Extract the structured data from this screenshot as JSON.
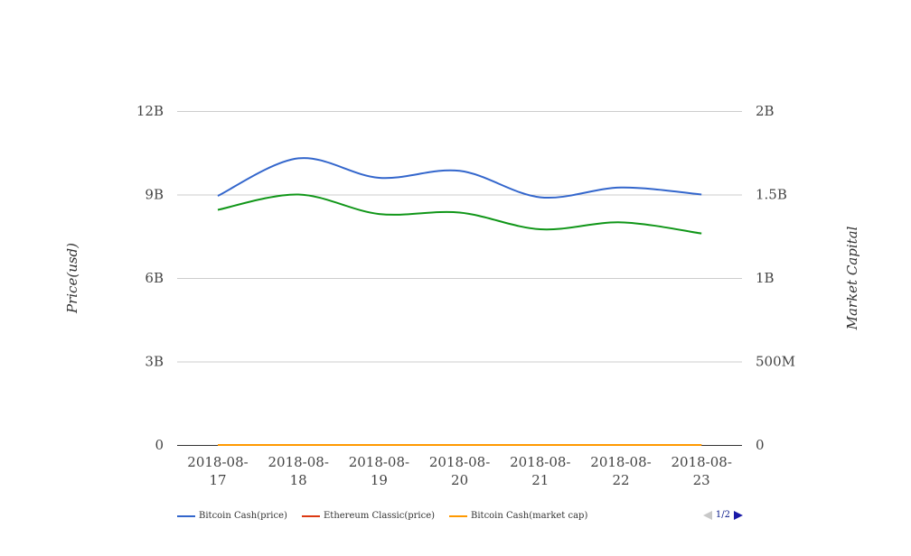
{
  "chart_data": {
    "type": "line",
    "categories": [
      "2018-08-17",
      "2018-08-18",
      "2018-08-19",
      "2018-08-20",
      "2018-08-21",
      "2018-08-22",
      "2018-08-23"
    ],
    "category_lines": [
      [
        "2018-08-",
        "17"
      ],
      [
        "2018-08-",
        "18"
      ],
      [
        "2018-08-",
        "19"
      ],
      [
        "2018-08-",
        "20"
      ],
      [
        "2018-08-",
        "21"
      ],
      [
        "2018-08-",
        "22"
      ],
      [
        "2018-08-",
        "23"
      ]
    ],
    "y_left": {
      "label": "Price(usd)",
      "ticks": [
        "0",
        "3B",
        "6B",
        "9B",
        "12B"
      ],
      "range": [
        0,
        12000000000
      ]
    },
    "y_right": {
      "label": "Market Capital",
      "ticks": [
        "0",
        "500M",
        "1B",
        "1.5B",
        "2B"
      ],
      "range": [
        0,
        2000000000
      ]
    },
    "grid": true,
    "series": [
      {
        "name": "Bitcoin Cash(price)",
        "color": "#3366cc",
        "axis": "left",
        "values": [
          8950000000,
          10300000000,
          9600000000,
          9850000000,
          8900000000,
          9250000000,
          9000000000
        ]
      },
      {
        "name": "Ethereum Classic(price)",
        "color": "#dc3912",
        "axis": "left",
        "values": [
          0,
          0,
          0,
          0,
          0,
          0,
          0
        ]
      },
      {
        "name": "Bitcoin Cash(market cap)",
        "color": "#ff9900",
        "axis": "left",
        "values": [
          0,
          0,
          0,
          0,
          0,
          0,
          0
        ]
      },
      {
        "name": "",
        "color": "#109618",
        "axis": "left",
        "values": [
          8450000000,
          9000000000,
          8300000000,
          8350000000,
          7750000000,
          8000000000,
          7600000000
        ]
      }
    ],
    "legend": {
      "placement": "bottom",
      "items": [
        {
          "label": "Bitcoin Cash(price)",
          "color": "#3366cc"
        },
        {
          "label": "Ethereum Classic(price)",
          "color": "#dc3912"
        },
        {
          "label": "Bitcoin Cash(market cap)",
          "color": "#ff9900"
        }
      ],
      "page": "1/2"
    }
  }
}
